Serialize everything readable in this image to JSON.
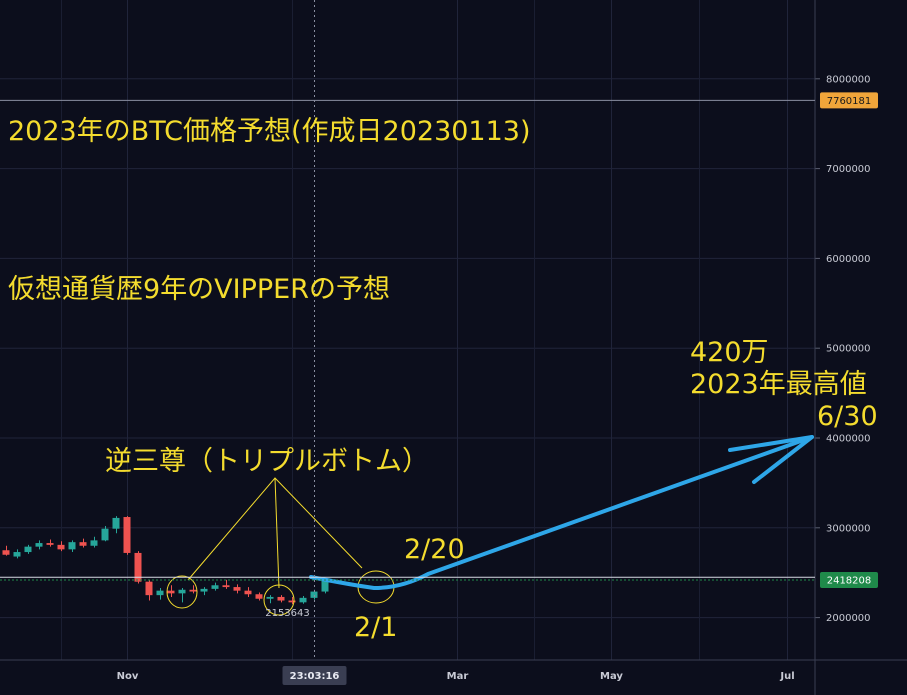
{
  "chart_data": {
    "type": "candlestick",
    "y_range": [
      1550000,
      8980000
    ],
    "y_ticks": [
      {
        "value": 8000000,
        "label": "8000000"
      },
      {
        "value": 7000000,
        "label": "7000000"
      },
      {
        "value": 6000000,
        "label": "6000000"
      },
      {
        "value": 5000000,
        "label": "5000000"
      },
      {
        "value": 4000000,
        "label": "4000000"
      },
      {
        "value": 3000000,
        "label": "3000000"
      },
      {
        "value": 2000000,
        "label": "2000000"
      }
    ],
    "x_ticks": [
      {
        "index": 11,
        "label": "Nov"
      },
      {
        "index": 41,
        "label": "Mar"
      },
      {
        "index": 55,
        "label": "May"
      },
      {
        "index": 71,
        "label": "Jul"
      }
    ],
    "crosshair": {
      "index": 28,
      "time_label": "23:03:16",
      "price": 2450000
    },
    "price_tags": {
      "high_line": {
        "value": 7760181,
        "label": "7760181",
        "color": "#f0a53a"
      },
      "current": {
        "value": 2418208,
        "label": "2418208",
        "color": "#1f8a4a"
      }
    },
    "low_label": {
      "index": 25.5,
      "value": 2050000,
      "label": "2153643"
    },
    "colors": {
      "up": "#26a69a",
      "down": "#ef5350",
      "annotation": "#f4dc2e",
      "forecast": "#2ea6e8"
    },
    "candles": [
      {
        "i": 0,
        "o": 2750000,
        "h": 2800000,
        "l": 2690000,
        "c": 2700000
      },
      {
        "i": 1,
        "o": 2680000,
        "h": 2760000,
        "l": 2660000,
        "c": 2730000
      },
      {
        "i": 2,
        "o": 2730000,
        "h": 2810000,
        "l": 2710000,
        "c": 2790000
      },
      {
        "i": 3,
        "o": 2790000,
        "h": 2860000,
        "l": 2760000,
        "c": 2830000
      },
      {
        "i": 4,
        "o": 2830000,
        "h": 2870000,
        "l": 2790000,
        "c": 2810000
      },
      {
        "i": 5,
        "o": 2810000,
        "h": 2850000,
        "l": 2740000,
        "c": 2760000
      },
      {
        "i": 6,
        "o": 2760000,
        "h": 2860000,
        "l": 2730000,
        "c": 2840000
      },
      {
        "i": 7,
        "o": 2840000,
        "h": 2880000,
        "l": 2780000,
        "c": 2800000
      },
      {
        "i": 8,
        "o": 2800000,
        "h": 2900000,
        "l": 2780000,
        "c": 2860000
      },
      {
        "i": 9,
        "o": 2860000,
        "h": 3020000,
        "l": 2850000,
        "c": 2990000
      },
      {
        "i": 10,
        "o": 2990000,
        "h": 3130000,
        "l": 2940000,
        "c": 3110000
      },
      {
        "i": 11,
        "o": 3120000,
        "h": 3130000,
        "l": 2700000,
        "c": 2720000
      },
      {
        "i": 12,
        "o": 2720000,
        "h": 2740000,
        "l": 2380000,
        "c": 2400000
      },
      {
        "i": 13,
        "o": 2400000,
        "h": 2420000,
        "l": 2190000,
        "c": 2250000
      },
      {
        "i": 14,
        "o": 2250000,
        "h": 2330000,
        "l": 2200000,
        "c": 2300000
      },
      {
        "i": 15,
        "o": 2300000,
        "h": 2360000,
        "l": 2230000,
        "c": 2270000
      },
      {
        "i": 16,
        "o": 2270000,
        "h": 2330000,
        "l": 2170000,
        "c": 2310000
      },
      {
        "i": 17,
        "o": 2310000,
        "h": 2360000,
        "l": 2270000,
        "c": 2290000
      },
      {
        "i": 18,
        "o": 2290000,
        "h": 2340000,
        "l": 2250000,
        "c": 2320000
      },
      {
        "i": 19,
        "o": 2320000,
        "h": 2390000,
        "l": 2300000,
        "c": 2360000
      },
      {
        "i": 20,
        "o": 2360000,
        "h": 2420000,
        "l": 2320000,
        "c": 2340000
      },
      {
        "i": 21,
        "o": 2340000,
        "h": 2370000,
        "l": 2270000,
        "c": 2300000
      },
      {
        "i": 22,
        "o": 2300000,
        "h": 2340000,
        "l": 2230000,
        "c": 2260000
      },
      {
        "i": 23,
        "o": 2260000,
        "h": 2280000,
        "l": 2190000,
        "c": 2210000
      },
      {
        "i": 24,
        "o": 2210000,
        "h": 2250000,
        "l": 2160000,
        "c": 2230000
      },
      {
        "i": 25,
        "o": 2230000,
        "h": 2250000,
        "l": 2170000,
        "c": 2190000
      },
      {
        "i": 26,
        "o": 2190000,
        "h": 2230000,
        "l": 2150000,
        "c": 2170000
      },
      {
        "i": 27,
        "o": 2170000,
        "h": 2240000,
        "l": 2154000,
        "c": 2220000
      },
      {
        "i": 28,
        "o": 2220000,
        "h": 2310000,
        "l": 2200000,
        "c": 2290000
      },
      {
        "i": 29,
        "o": 2290000,
        "h": 2440000,
        "l": 2270000,
        "c": 2418208
      }
    ],
    "annotations": {
      "title": "2023年のBTC価格予想(作成日20230113)",
      "subtitle": "仮想通貨歴9年のVIPPERの予想",
      "pattern": "逆三尊（トリプルボトム）",
      "target_value": "420万",
      "target_label": "2023年最高値",
      "target_date": "6/30",
      "point_feb20": "2/20",
      "point_feb1": "2/1"
    }
  }
}
